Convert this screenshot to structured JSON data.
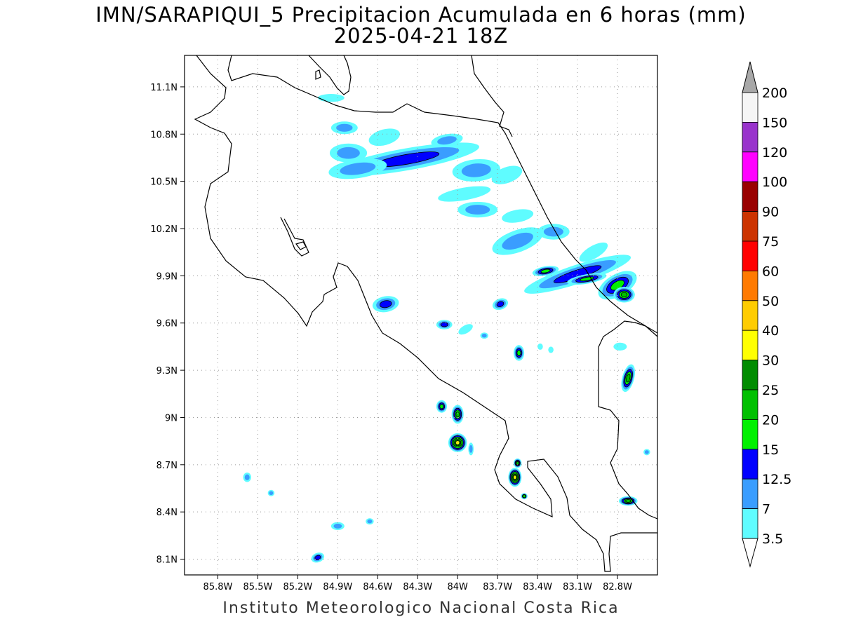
{
  "header": {
    "title_line1": "IMN/SARAPIQUI_5 Precipitacion Acumulada en 6 horas (mm)",
    "title_line2": "2025-04-21 18Z"
  },
  "footer": {
    "credit": "Instituto Meteorologico Nacional Costa Rica"
  },
  "map": {
    "lon_range": [
      -86.05,
      -82.5
    ],
    "lat_range": [
      8.0,
      11.3
    ],
    "lon_ticks": [
      -85.8,
      -85.5,
      -85.2,
      -84.9,
      -84.6,
      -84.3,
      -84.0,
      -83.7,
      -83.4,
      -83.1,
      -82.8
    ],
    "lat_ticks": [
      8.1,
      8.4,
      8.7,
      9.0,
      9.3,
      9.6,
      9.9,
      10.2,
      10.5,
      10.8,
      11.1
    ],
    "lon_tick_labels": [
      "85.8W",
      "85.5W",
      "85.2W",
      "84.9W",
      "84.6W",
      "84.3W",
      "84W",
      "83.7W",
      "83.4W",
      "83.1W",
      "82.8W"
    ],
    "lat_tick_labels": [
      "8.1N",
      "8.4N",
      "8.7N",
      "9N",
      "9.3N",
      "9.6N",
      "9.9N",
      "10.2N",
      "10.5N",
      "10.8N",
      "11.1N"
    ],
    "grid": true
  },
  "colorbar": {
    "levels": [
      "3.5",
      "7",
      "12.5",
      "15",
      "20",
      "25",
      "30",
      "40",
      "50",
      "60",
      "75",
      "90",
      "100",
      "120",
      "150",
      "200"
    ],
    "colors": [
      "#ffffff",
      "#5ffcff",
      "#3a9dff",
      "#0000ff",
      "#00f000",
      "#00c000",
      "#008c00",
      "#ffff00",
      "#ffcc00",
      "#ff7a00",
      "#ff0000",
      "#cc3300",
      "#990000",
      "#ff00ff",
      "#9933cc",
      "#f5f5f5",
      "#a8a8a8"
    ]
  },
  "precip_cells": [
    {
      "lon": -84.38,
      "lat": 10.64,
      "rx": 0.55,
      "ry": 0.07,
      "rot": -10,
      "level": 3
    },
    {
      "lon": -84.75,
      "lat": 10.58,
      "rx": 0.22,
      "ry": 0.06,
      "rot": -8,
      "level": 2
    },
    {
      "lon": -84.82,
      "lat": 10.68,
      "rx": 0.14,
      "ry": 0.06,
      "rot": 0,
      "level": 2
    },
    {
      "lon": -84.85,
      "lat": 10.84,
      "rx": 0.1,
      "ry": 0.04,
      "rot": 0,
      "level": 2
    },
    {
      "lon": -84.55,
      "lat": 10.78,
      "rx": 0.12,
      "ry": 0.05,
      "rot": -15,
      "level": 1
    },
    {
      "lon": -84.08,
      "lat": 10.76,
      "rx": 0.12,
      "ry": 0.04,
      "rot": -10,
      "level": 2
    },
    {
      "lon": -84.95,
      "lat": 11.03,
      "rx": 0.1,
      "ry": 0.025,
      "rot": 0,
      "level": 1
    },
    {
      "lon": -83.86,
      "lat": 10.57,
      "rx": 0.18,
      "ry": 0.07,
      "rot": -5,
      "level": 2
    },
    {
      "lon": -83.63,
      "lat": 10.54,
      "rx": 0.12,
      "ry": 0.05,
      "rot": -20,
      "level": 1
    },
    {
      "lon": -83.95,
      "lat": 10.42,
      "rx": 0.2,
      "ry": 0.04,
      "rot": -10,
      "level": 1
    },
    {
      "lon": -83.85,
      "lat": 10.32,
      "rx": 0.15,
      "ry": 0.05,
      "rot": 0,
      "level": 2
    },
    {
      "lon": -83.55,
      "lat": 10.28,
      "rx": 0.12,
      "ry": 0.04,
      "rot": -10,
      "level": 1
    },
    {
      "lon": -83.55,
      "lat": 10.12,
      "rx": 0.2,
      "ry": 0.07,
      "rot": -20,
      "level": 2
    },
    {
      "lon": -83.28,
      "lat": 10.18,
      "rx": 0.12,
      "ry": 0.05,
      "rot": 0,
      "level": 2
    },
    {
      "lon": -83.1,
      "lat": 9.91,
      "rx": 0.42,
      "ry": 0.06,
      "rot": -18,
      "level": 3
    },
    {
      "lon": -83.03,
      "lat": 9.88,
      "rx": 0.15,
      "ry": 0.03,
      "rot": -10,
      "level": 4
    },
    {
      "lon": -82.8,
      "lat": 9.84,
      "rx": 0.16,
      "ry": 0.07,
      "rot": -30,
      "level": 4
    },
    {
      "lon": -82.72,
      "lat": 9.78,
      "rx": 0.05,
      "ry": 0.03,
      "rot": 0,
      "level": 7
    },
    {
      "lon": -82.75,
      "lat": 9.78,
      "rx": 0.08,
      "ry": 0.05,
      "rot": 0,
      "level": 5
    },
    {
      "lon": -83.34,
      "lat": 9.93,
      "rx": 0.1,
      "ry": 0.03,
      "rot": -10,
      "level": 4
    },
    {
      "lon": -82.98,
      "lat": 10.05,
      "rx": 0.12,
      "ry": 0.04,
      "rot": -30,
      "level": 1
    },
    {
      "lon": -84.54,
      "lat": 9.72,
      "rx": 0.1,
      "ry": 0.05,
      "rot": -10,
      "level": 3
    },
    {
      "lon": -83.68,
      "lat": 9.72,
      "rx": 0.06,
      "ry": 0.035,
      "rot": -20,
      "level": 3
    },
    {
      "lon": -84.1,
      "lat": 9.59,
      "rx": 0.06,
      "ry": 0.03,
      "rot": 0,
      "level": 3
    },
    {
      "lon": -83.94,
      "lat": 9.56,
      "rx": 0.06,
      "ry": 0.025,
      "rot": -30,
      "level": 1
    },
    {
      "lon": -83.8,
      "lat": 9.52,
      "rx": 0.03,
      "ry": 0.02,
      "rot": 0,
      "level": 2
    },
    {
      "lon": -83.54,
      "lat": 9.41,
      "rx": 0.04,
      "ry": 0.05,
      "rot": 0,
      "level": 4
    },
    {
      "lon": -82.72,
      "lat": 9.25,
      "rx": 0.045,
      "ry": 0.09,
      "rot": 15,
      "level": 5
    },
    {
      "lon": -82.78,
      "lat": 9.45,
      "rx": 0.05,
      "ry": 0.025,
      "rot": 0,
      "level": 1
    },
    {
      "lon": -84.12,
      "lat": 9.07,
      "rx": 0.04,
      "ry": 0.04,
      "rot": 0,
      "level": 4
    },
    {
      "lon": -84.0,
      "lat": 9.02,
      "rx": 0.045,
      "ry": 0.06,
      "rot": 0,
      "level": 5
    },
    {
      "lon": -84.0,
      "lat": 8.84,
      "rx": 0.07,
      "ry": 0.06,
      "rot": 0,
      "level": 7
    },
    {
      "lon": -83.9,
      "lat": 8.8,
      "rx": 0.02,
      "ry": 0.04,
      "rot": 0,
      "level": 2
    },
    {
      "lon": -83.57,
      "lat": 8.62,
      "rx": 0.05,
      "ry": 0.06,
      "rot": 0,
      "level": 7
    },
    {
      "lon": -83.55,
      "lat": 8.71,
      "rx": 0.03,
      "ry": 0.03,
      "rot": 0,
      "level": 5
    },
    {
      "lon": -83.5,
      "lat": 8.5,
      "rx": 0.025,
      "ry": 0.02,
      "rot": 0,
      "level": 4
    },
    {
      "lon": -82.72,
      "lat": 8.47,
      "rx": 0.07,
      "ry": 0.03,
      "rot": 0,
      "level": 5
    },
    {
      "lon": -85.58,
      "lat": 8.62,
      "rx": 0.03,
      "ry": 0.03,
      "rot": 0,
      "level": 2
    },
    {
      "lon": -85.4,
      "lat": 8.52,
      "rx": 0.025,
      "ry": 0.02,
      "rot": 0,
      "level": 2
    },
    {
      "lon": -84.9,
      "lat": 8.31,
      "rx": 0.05,
      "ry": 0.025,
      "rot": 0,
      "level": 2
    },
    {
      "lon": -84.66,
      "lat": 8.34,
      "rx": 0.03,
      "ry": 0.02,
      "rot": 0,
      "level": 2
    },
    {
      "lon": -85.05,
      "lat": 8.11,
      "rx": 0.05,
      "ry": 0.03,
      "rot": -20,
      "level": 3
    },
    {
      "lon": -83.38,
      "lat": 9.45,
      "rx": 0.02,
      "ry": 0.02,
      "rot": 0,
      "level": 1
    },
    {
      "lon": -83.3,
      "lat": 9.43,
      "rx": 0.02,
      "ry": 0.02,
      "rot": 0,
      "level": 1
    },
    {
      "lon": -82.58,
      "lat": 8.78,
      "rx": 0.025,
      "ry": 0.02,
      "rot": 0,
      "level": 2
    }
  ]
}
